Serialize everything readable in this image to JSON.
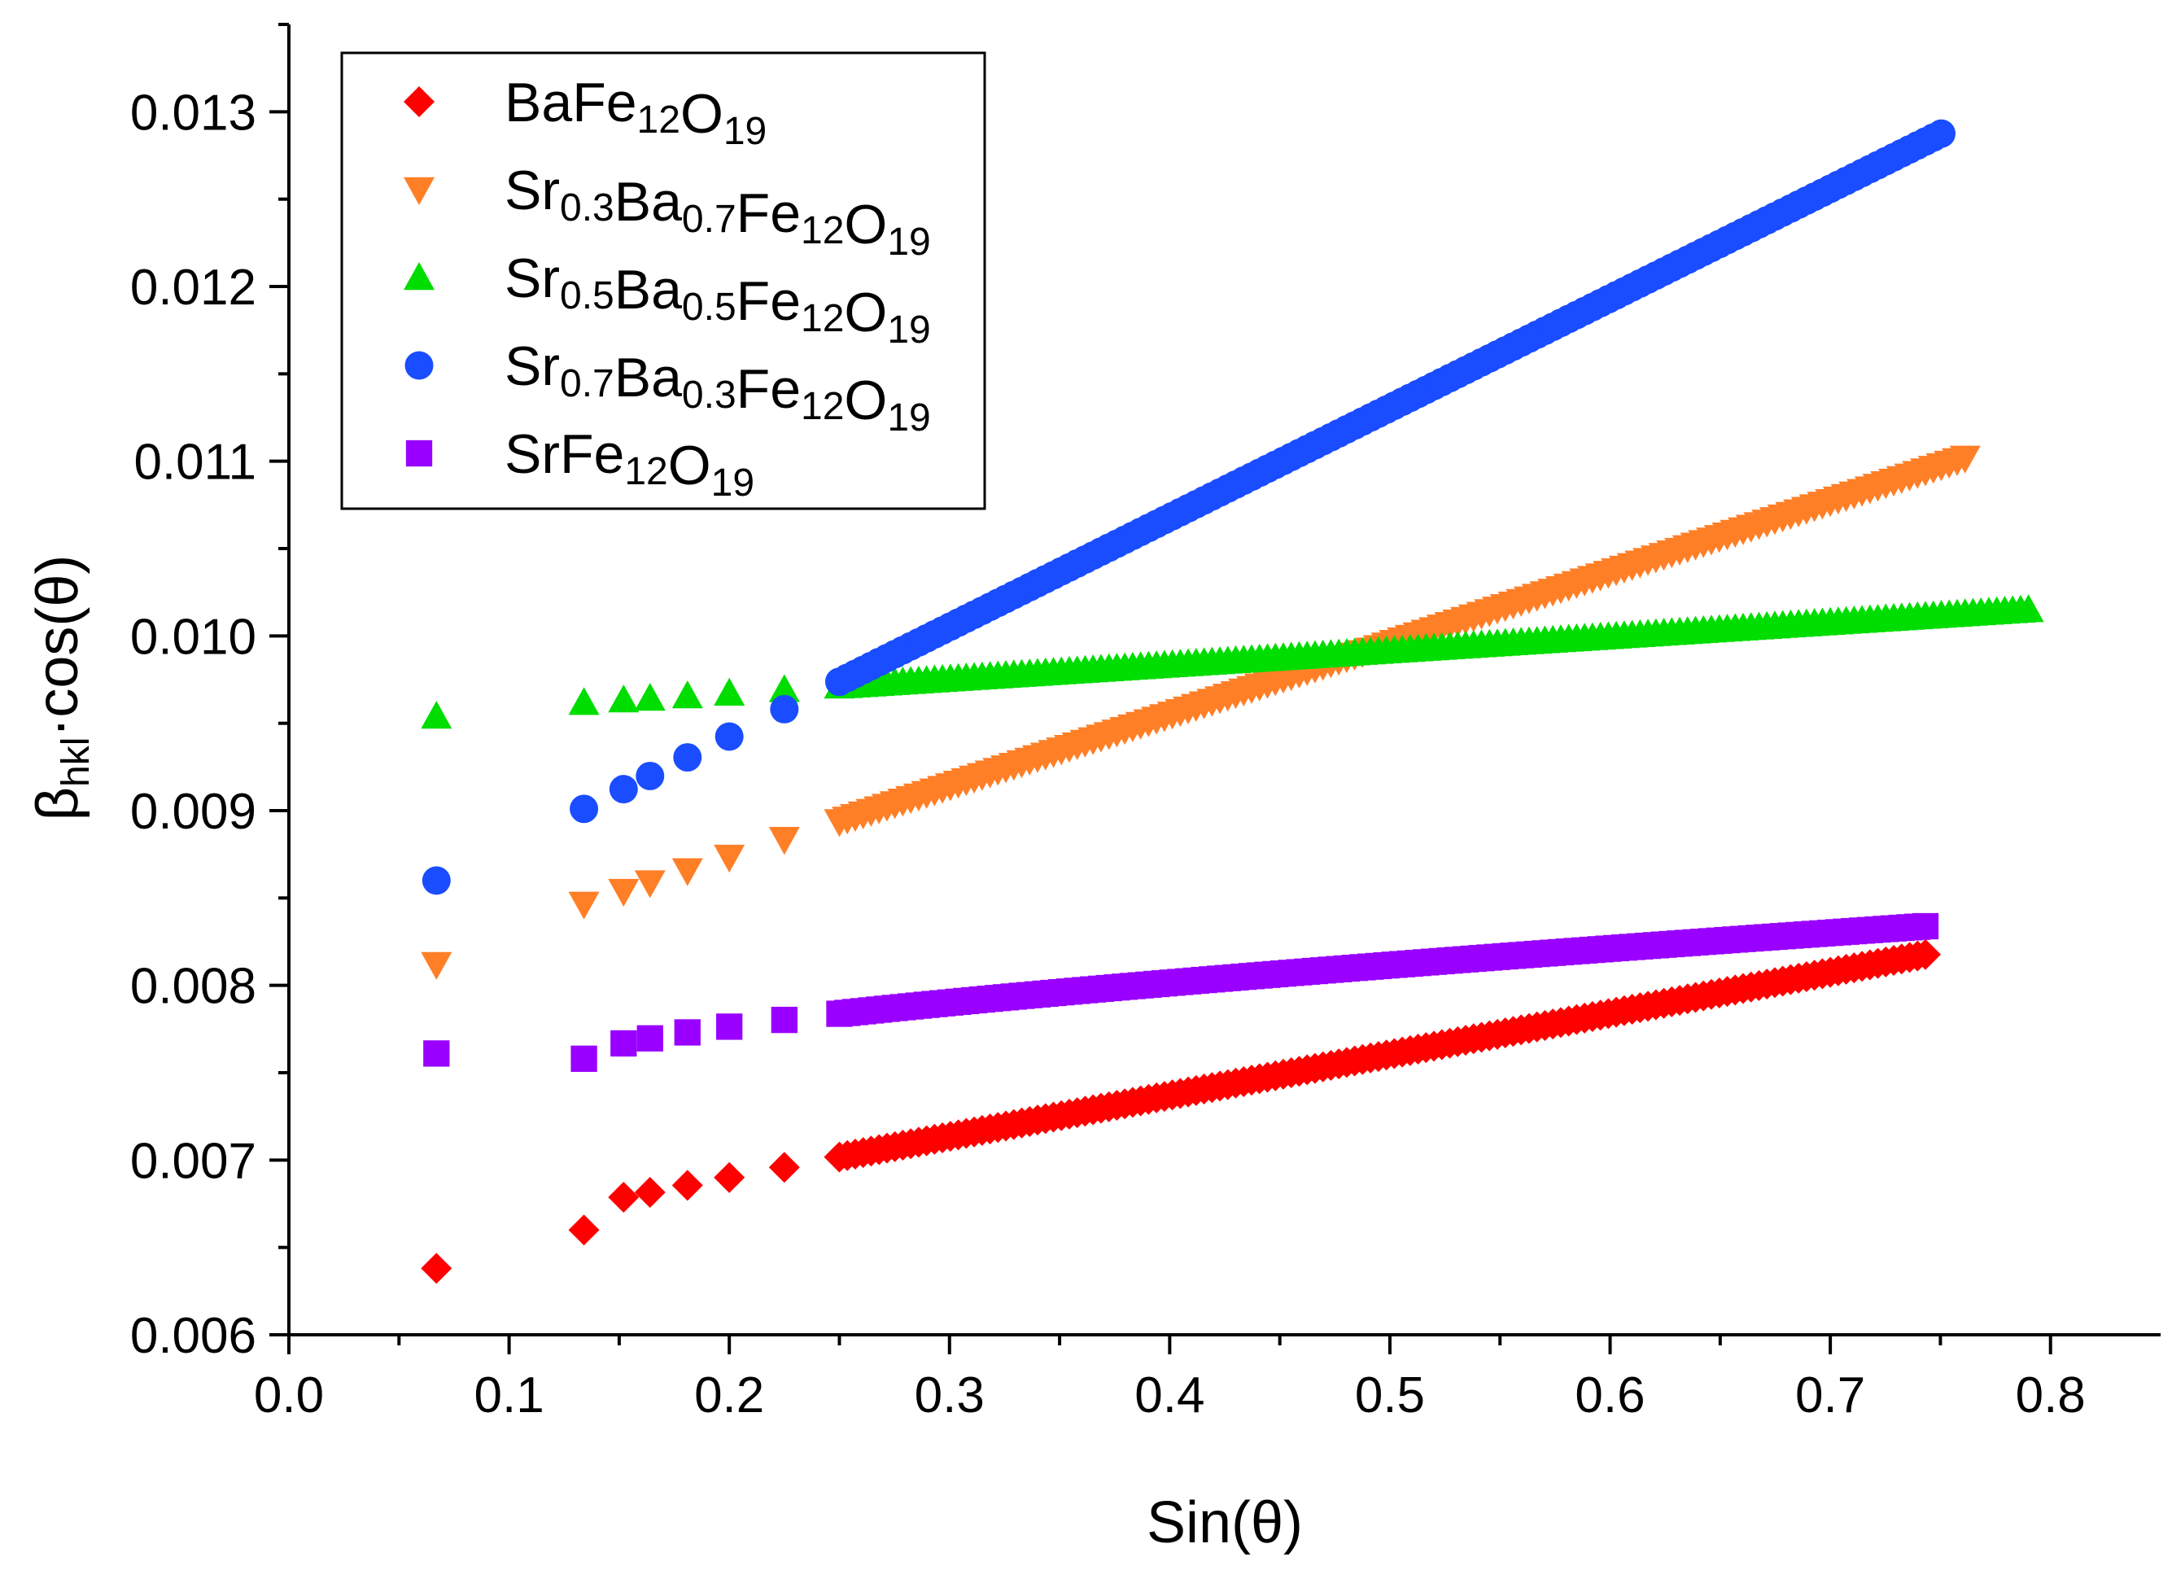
{
  "chart_data": {
    "type": "scatter",
    "xlabel": "Sin(θ)",
    "ylabel": {
      "base": "β",
      "sub": "hkl",
      "rest": "·cos(θ)"
    },
    "xlim": [
      0.0,
      0.85
    ],
    "ylim": [
      0.006,
      0.0135
    ],
    "x_ticks": [
      0.0,
      0.1,
      0.2,
      0.3,
      0.4,
      0.5,
      0.6,
      0.7,
      0.8
    ],
    "x_tick_labels": [
      "0.0",
      "0.1",
      "0.2",
      "0.3",
      "0.4",
      "0.5",
      "0.6",
      "0.7",
      "0.8"
    ],
    "y_ticks": [
      0.006,
      0.007,
      0.008,
      0.009,
      0.01,
      0.011,
      0.012,
      0.013
    ],
    "y_tick_labels": [
      "0.006",
      "0.007",
      "0.008",
      "0.009",
      "0.010",
      "0.011",
      "0.012",
      "0.013"
    ],
    "grid": false,
    "legend_position": "top-left",
    "series": [
      {
        "name": "BaFe12O19",
        "label_parts": [
          [
            "Ba",
            ""
          ],
          [
            "Fe",
            "12"
          ],
          [
            "O",
            "19"
          ]
        ],
        "marker": "diamond",
        "color": "#ff0000",
        "x_points": [
          0.067,
          0.134
        ],
        "y_points": [
          0.00638,
          0.0066
        ],
        "x_start": 0.134,
        "x_end": 0.745,
        "step": 0.0036,
        "fit": [
          0.00643,
          0.00235
        ],
        "dense_x_start": 0.25
      },
      {
        "name": "Sr0.3Ba0.7Fe12O19",
        "label_parts": [
          [
            "Sr",
            "0.3"
          ],
          [
            "Ba",
            "0.7"
          ],
          [
            "Fe",
            "12"
          ],
          [
            "O",
            "19"
          ]
        ],
        "marker": "triangle-down",
        "color": "#ff7f27",
        "x_points": [
          0.067
        ],
        "y_points": [
          0.00812
        ],
        "x_start": 0.134,
        "x_end": 0.762,
        "step": 0.0036,
        "fit": [
          0.00792,
          0.00407
        ],
        "dense_x_start": 0.25
      },
      {
        "name": "Sr0.5Ba0.5Fe12O19",
        "label_parts": [
          [
            "Sr",
            "0.5"
          ],
          [
            "Ba",
            "0.5"
          ],
          [
            "Fe",
            "12"
          ],
          [
            "O",
            "19"
          ]
        ],
        "marker": "triangle-up",
        "color": "#00dd00",
        "x_points": [
          0.067
        ],
        "y_points": [
          0.00954
        ],
        "x_start": 0.134,
        "x_end": 0.792,
        "step": 0.0036,
        "fit": [
          0.00951,
          0.00081
        ],
        "dense_x_start": 0.25
      },
      {
        "name": "Sr0.7Ba0.3Fe12O19",
        "label_parts": [
          [
            "Sr",
            "0.7"
          ],
          [
            "Ba",
            "0.3"
          ],
          [
            "Fe",
            "12"
          ],
          [
            "O",
            "19"
          ]
        ],
        "marker": "circle",
        "color": "#1a4dff",
        "x_points": [
          0.067
        ],
        "y_points": [
          0.0086
        ],
        "x_start": 0.134,
        "x_end": 0.752,
        "step": 0.0036,
        "fit": [
          0.00817,
          0.00627
        ],
        "dense_x_start": 0.25
      },
      {
        "name": "SrFe12O19",
        "label_parts": [
          [
            "Sr",
            ""
          ],
          [
            "Fe",
            "12"
          ],
          [
            "O",
            "19"
          ]
        ],
        "marker": "square",
        "color": "#9900ff",
        "x_points": [
          0.067
        ],
        "y_points": [
          0.00761
        ],
        "x_start": 0.134,
        "x_end": 0.745,
        "step": 0.0036,
        "fit": [
          0.00758,
          0.001
        ],
        "curve": "sqrt",
        "dense_x_start": 0.25
      }
    ]
  }
}
